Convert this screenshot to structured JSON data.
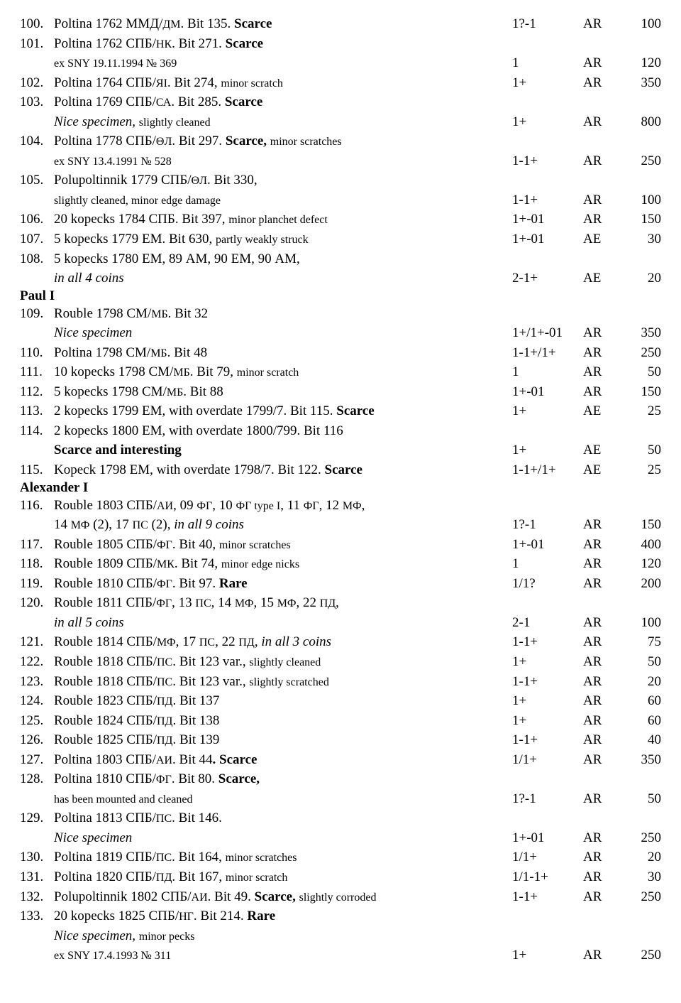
{
  "rows": [
    {
      "lot": "100.",
      "d": [
        {
          "t": "Poltina 1762 ММД/"
        },
        {
          "t": "ДМ",
          "sm": 1
        },
        {
          "t": ". Bit 135. "
        },
        {
          "t": "Scarce",
          "b": 1
        }
      ],
      "g": "1?-1",
      "m": "AR",
      "p": "100"
    },
    {
      "lot": "101.",
      "d": [
        {
          "t": "Poltina 1762 СПБ/"
        },
        {
          "t": "НК",
          "sm": 1
        },
        {
          "t": ". Bit 271. "
        },
        {
          "t": "Scarce",
          "b": 1
        }
      ]
    },
    {
      "ind": 1,
      "d": [
        {
          "t": "ex SNY 19.11.1994 № 369",
          "sm": 1
        }
      ],
      "g": "1",
      "m": "AR",
      "p": "120"
    },
    {
      "lot": "102.",
      "d": [
        {
          "t": "Poltina 1764 СПБ/"
        },
        {
          "t": "ЯI",
          "sm": 1
        },
        {
          "t": ". Bit 274, "
        },
        {
          "t": "minor scratch",
          "sm": 1
        }
      ],
      "g": "1+",
      "m": "AR",
      "p": "350"
    },
    {
      "lot": "103.",
      "d": [
        {
          "t": "Poltina 1769 СПБ/"
        },
        {
          "t": "СА",
          "sm": 1
        },
        {
          "t": ". Bit 285. "
        },
        {
          "t": "Scarce",
          "b": 1
        }
      ]
    },
    {
      "ind": 1,
      "d": [
        {
          "t": "Nice specimen, ",
          "i": 1
        },
        {
          "t": "slightly cleaned",
          "sm": 1
        }
      ],
      "g": "1+",
      "m": "AR",
      "p": "800"
    },
    {
      "lot": "104.",
      "d": [
        {
          "t": "Poltina 1778 СПБ/"
        },
        {
          "t": "ΘЛ",
          "sm": 1
        },
        {
          "t": ". Bit 297. "
        },
        {
          "t": "Scarce, ",
          "b": 1
        },
        {
          "t": "minor scratches",
          "sm": 1
        }
      ]
    },
    {
      "ind": 1,
      "d": [
        {
          "t": "ex SNY 13.4.1991 № 528",
          "sm": 1
        }
      ],
      "g": "1-1+",
      "m": "AR",
      "p": "250"
    },
    {
      "lot": "105.",
      "d": [
        {
          "t": "Polupoltinnik 1779 СПБ/"
        },
        {
          "t": "ΘЛ",
          "sm": 1
        },
        {
          "t": ". Bit 330,"
        }
      ]
    },
    {
      "ind": 1,
      "d": [
        {
          "t": "slightly cleaned, minor edge damage",
          "sm": 1
        }
      ],
      "g": "1-1+",
      "m": "AR",
      "p": "100"
    },
    {
      "lot": "106.",
      "d": [
        {
          "t": "20 kopecks 1784 СПБ. Bit 397, "
        },
        {
          "t": "minor planchet defect",
          "sm": 1
        }
      ],
      "g": "1+-01",
      "m": "AR",
      "p": "150"
    },
    {
      "lot": "107.",
      "d": [
        {
          "t": "5 kopecks 1779 ЕМ. Bit 630, "
        },
        {
          "t": "partly weakly struck",
          "sm": 1
        }
      ],
      "g": "1+-01",
      "m": "AE",
      "p": "30"
    },
    {
      "lot": "108.",
      "d": [
        {
          "t": "5 kopecks 1780 ЕМ, 89 АМ, 90 ЕМ, 90 АМ,"
        }
      ]
    },
    {
      "ind": 1,
      "d": [
        {
          "t": "in all 4 coins",
          "i": 1
        }
      ],
      "g": "2-1+",
      "m": "AE",
      "p": "20"
    },
    {
      "sec": "Paul I"
    },
    {
      "lot": "109.",
      "d": [
        {
          "t": "Rouble 1798 СМ/"
        },
        {
          "t": "МБ",
          "sm": 1
        },
        {
          "t": ". Bit 32"
        }
      ]
    },
    {
      "ind": 1,
      "d": [
        {
          "t": "Nice specimen",
          "i": 1
        }
      ],
      "g": "1+/1+-01",
      "m": "AR",
      "p": "350"
    },
    {
      "lot": "110.",
      "d": [
        {
          "t": "Poltina 1798 СМ/"
        },
        {
          "t": "МБ",
          "sm": 1
        },
        {
          "t": ". Bit 48"
        }
      ],
      "g": "1-1+/1+",
      "m": "AR",
      "p": "250"
    },
    {
      "lot": "111.",
      "d": [
        {
          "t": "10 kopecks 1798 СМ/"
        },
        {
          "t": "МБ",
          "sm": 1
        },
        {
          "t": ". Bit 79, "
        },
        {
          "t": "minor scratch",
          "sm": 1
        }
      ],
      "g": "1",
      "m": "AR",
      "p": "50"
    },
    {
      "lot": "112.",
      "d": [
        {
          "t": "5 kopecks 1798 СМ/"
        },
        {
          "t": "МБ",
          "sm": 1
        },
        {
          "t": ". Bit 88"
        }
      ],
      "g": "1+-01",
      "m": "AR",
      "p": "150"
    },
    {
      "lot": "113.",
      "d": [
        {
          "t": "2 kopecks 1799 ЕМ, with overdate 1799/7. Bit 115. "
        },
        {
          "t": "Scarce",
          "b": 1
        }
      ],
      "g": "1+",
      "m": "AE",
      "p": "25"
    },
    {
      "lot": "114.",
      "d": [
        {
          "t": "2 kopecks 1800 ЕМ, with overdate 1800/799. Bit 116"
        }
      ]
    },
    {
      "ind": 1,
      "d": [
        {
          "t": "Scarce and interesting",
          "b": 1
        }
      ],
      "g": "1+",
      "m": "AE",
      "p": "50"
    },
    {
      "lot": "115.",
      "d": [
        {
          "t": "Kopeck 1798 ЕМ, with overdate 1798/7. Bit 122. "
        },
        {
          "t": "Scarce",
          "b": 1
        }
      ],
      "g": "1-1+/1+",
      "m": "AE",
      "p": "25"
    },
    {
      "sec": "Alexander I"
    },
    {
      "lot": "116.",
      "d": [
        {
          "t": "Rouble 1803 СПБ/"
        },
        {
          "t": "АИ",
          "sm": 1
        },
        {
          "t": ", 09 "
        },
        {
          "t": "ФГ",
          "sm": 1
        },
        {
          "t": ", 10 "
        },
        {
          "t": "ФГ type I",
          "sm": 1
        },
        {
          "t": ", 11 "
        },
        {
          "t": "ФГ",
          "sm": 1
        },
        {
          "t": ", 12 "
        },
        {
          "t": "МФ",
          "sm": 1
        },
        {
          "t": ","
        }
      ]
    },
    {
      "ind": 1,
      "d": [
        {
          "t": "14 "
        },
        {
          "t": "МФ",
          "sm": 1
        },
        {
          "t": " (2), 17 "
        },
        {
          "t": "ПС",
          "sm": 1
        },
        {
          "t": " (2), "
        },
        {
          "t": "in all 9 coins",
          "i": 1
        }
      ],
      "g": "1?-1",
      "m": "AR",
      "p": "150"
    },
    {
      "lot": "117.",
      "d": [
        {
          "t": "Rouble 1805 СПБ/"
        },
        {
          "t": "ФГ",
          "sm": 1
        },
        {
          "t": ". Bit 40, "
        },
        {
          "t": "minor scratches",
          "sm": 1
        }
      ],
      "g": "1+-01",
      "m": "AR",
      "p": "400"
    },
    {
      "lot": "118.",
      "d": [
        {
          "t": "Rouble 1809 СПБ/"
        },
        {
          "t": "МК",
          "sm": 1
        },
        {
          "t": ". Bit 74, "
        },
        {
          "t": "minor edge nicks",
          "sm": 1
        }
      ],
      "g": "1",
      "m": "AR",
      "p": "120"
    },
    {
      "lot": "119.",
      "d": [
        {
          "t": "Rouble 1810 СПБ/"
        },
        {
          "t": "ФГ",
          "sm": 1
        },
        {
          "t": ". Bit 97. "
        },
        {
          "t": "Rare",
          "b": 1
        }
      ],
      "g": "1/1?",
      "m": "AR",
      "p": "200"
    },
    {
      "lot": "120.",
      "d": [
        {
          "t": "Rouble 1811 СПБ/"
        },
        {
          "t": "ФГ",
          "sm": 1
        },
        {
          "t": ", 13 "
        },
        {
          "t": "ПС",
          "sm": 1
        },
        {
          "t": ", 14 "
        },
        {
          "t": "МФ",
          "sm": 1
        },
        {
          "t": ", 15 "
        },
        {
          "t": "МФ",
          "sm": 1
        },
        {
          "t": ", 22 "
        },
        {
          "t": "ПД",
          "sm": 1
        },
        {
          "t": ","
        }
      ]
    },
    {
      "ind": 1,
      "d": [
        {
          "t": "in all 5 coins",
          "i": 1
        }
      ],
      "g": "2-1",
      "m": "AR",
      "p": "100"
    },
    {
      "lot": "121.",
      "d": [
        {
          "t": "Rouble 1814 СПБ/"
        },
        {
          "t": "МФ",
          "sm": 1
        },
        {
          "t": ",  17 "
        },
        {
          "t": "ПС",
          "sm": 1
        },
        {
          "t": ", 22 "
        },
        {
          "t": "ПД",
          "sm": 1
        },
        {
          "t": ", "
        },
        {
          "t": "in all 3 coins",
          "i": 1
        }
      ],
      "g": "1-1+",
      "m": "AR",
      "p": "75"
    },
    {
      "lot": "122.",
      "d": [
        {
          "t": "Rouble 1818 СПБ/"
        },
        {
          "t": "ПС",
          "sm": 1
        },
        {
          "t": ". Bit 123 var., "
        },
        {
          "t": "slightly cleaned",
          "sm": 1
        }
      ],
      "g": "1+",
      "m": "AR",
      "p": "50"
    },
    {
      "lot": "123.",
      "d": [
        {
          "t": "Rouble 1818 СПБ/"
        },
        {
          "t": "ПС",
          "sm": 1
        },
        {
          "t": ". Bit 123 var., "
        },
        {
          "t": "slightly scratched",
          "sm": 1
        }
      ],
      "g": "1-1+",
      "m": "AR",
      "p": "20"
    },
    {
      "lot": "124.",
      "d": [
        {
          "t": "Rouble 1823 СПБ/"
        },
        {
          "t": "ПД",
          "sm": 1
        },
        {
          "t": ". Bit 137"
        }
      ],
      "g": "1+",
      "m": "AR",
      "p": "60"
    },
    {
      "lot": "125.",
      "d": [
        {
          "t": "Rouble 1824 СПБ/"
        },
        {
          "t": "ПД",
          "sm": 1
        },
        {
          "t": ". Bit 138"
        }
      ],
      "g": "1+",
      "m": "AR",
      "p": "60"
    },
    {
      "lot": "126.",
      "d": [
        {
          "t": "Rouble 1825 СПБ/"
        },
        {
          "t": "ПД",
          "sm": 1
        },
        {
          "t": ". Bit 139"
        }
      ],
      "g": "1-1+",
      "m": "AR",
      "p": "40"
    },
    {
      "lot": "127.",
      "d": [
        {
          "t": "Poltina 1803 СПБ/"
        },
        {
          "t": "АИ",
          "sm": 1
        },
        {
          "t": ". Bit 44"
        },
        {
          "t": ". Scarce",
          "b": 1
        }
      ],
      "g": "1/1+",
      "m": "AR",
      "p": "350"
    },
    {
      "lot": "128.",
      "d": [
        {
          "t": "Poltina 1810 СПБ/"
        },
        {
          "t": "ФГ",
          "sm": 1
        },
        {
          "t": ". Bit 80. "
        },
        {
          "t": "Scarce,",
          "b": 1
        }
      ]
    },
    {
      "ind": 1,
      "d": [
        {
          "t": "has been mounted and cleaned",
          "sm": 1
        }
      ],
      "g": "1?-1",
      "m": "AR",
      "p": "50"
    },
    {
      "lot": "129.",
      "d": [
        {
          "t": "Poltina 1813 СПБ/"
        },
        {
          "t": "ПС",
          "sm": 1
        },
        {
          "t": ". Bit 146."
        }
      ]
    },
    {
      "ind": 1,
      "d": [
        {
          "t": "Nice specimen",
          "i": 1
        }
      ],
      "g": "1+-01",
      "m": "AR",
      "p": "250"
    },
    {
      "lot": "130.",
      "d": [
        {
          "t": "Poltina 1819 СПБ/"
        },
        {
          "t": "ПС",
          "sm": 1
        },
        {
          "t": ". Bit 164, "
        },
        {
          "t": "minor scratches",
          "sm": 1
        }
      ],
      "g": "1/1+",
      "m": "AR",
      "p": "20"
    },
    {
      "lot": "131.",
      "d": [
        {
          "t": "Poltina 1820 СПБ/"
        },
        {
          "t": "ПД",
          "sm": 1
        },
        {
          "t": ". Bit 167, "
        },
        {
          "t": "minor scratch",
          "sm": 1
        }
      ],
      "g": "1/1-1+",
      "m": "AR",
      "p": "30"
    },
    {
      "lot": "132.",
      "d": [
        {
          "t": "Polupoltinnik 1802 СПБ/"
        },
        {
          "t": "АИ",
          "sm": 1
        },
        {
          "t": ". Bit 49. "
        },
        {
          "t": "Scarce, ",
          "b": 1
        },
        {
          "t": "slightly corroded",
          "sm": 1
        }
      ],
      "g": "1-1+",
      "m": "AR",
      "p": "250"
    },
    {
      "lot": "133.",
      "d": [
        {
          "t": "20 kopecks 1825 СПБ/"
        },
        {
          "t": "НГ",
          "sm": 1
        },
        {
          "t": ". Bit 214. "
        },
        {
          "t": "Rare",
          "b": 1
        }
      ]
    },
    {
      "ind": 1,
      "d": [
        {
          "t": "Nice specimen, ",
          "i": 1
        },
        {
          "t": "minor pecks",
          "sm": 1
        }
      ]
    },
    {
      "ind": 1,
      "d": [
        {
          "t": "ex SNY 17.4.1993 № 311",
          "sm": 1
        }
      ],
      "g": "1+",
      "m": "AR",
      "p": "250"
    }
  ]
}
